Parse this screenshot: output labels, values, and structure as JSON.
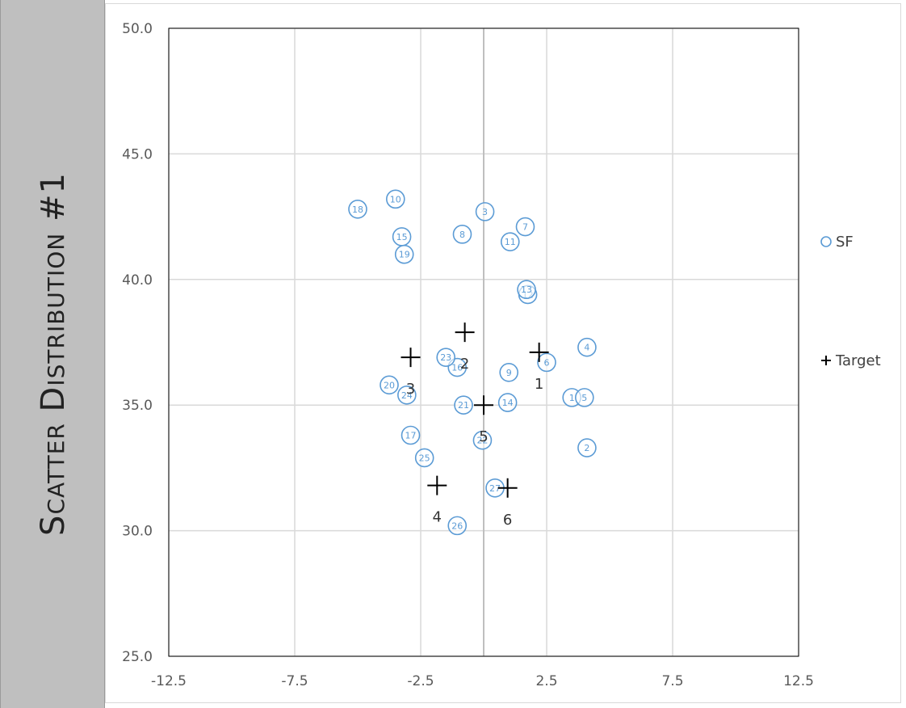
{
  "side_title": "Scatter Distribution #1",
  "chart_data": {
    "type": "scatter",
    "xlim": [
      -12.5,
      12.5
    ],
    "ylim": [
      25.0,
      50.0
    ],
    "x_ticks": [
      "-12.5",
      "-7.5",
      "-2.5",
      "2.5",
      "7.5",
      "12.5"
    ],
    "x_tick_values": [
      -12.5,
      -7.5,
      -2.5,
      2.5,
      7.5,
      12.5
    ],
    "y_ticks": [
      "25.0",
      "30.0",
      "35.0",
      "40.0",
      "45.0",
      "50.0"
    ],
    "y_tick_values": [
      25,
      30,
      35,
      40,
      45,
      50
    ],
    "grid": true,
    "legend_position": "right",
    "series": [
      {
        "name": "SF",
        "color": "#5b9bd5",
        "marker": "circle",
        "points": [
          {
            "label": "1",
            "x": 3.5,
            "y": 35.3
          },
          {
            "label": "2",
            "x": 4.1,
            "y": 33.3
          },
          {
            "label": "3",
            "x": 0.05,
            "y": 42.7
          },
          {
            "label": "4",
            "x": 4.1,
            "y": 37.3
          },
          {
            "label": "5",
            "x": 4.0,
            "y": 35.3
          },
          {
            "label": "6",
            "x": 2.5,
            "y": 36.7
          },
          {
            "label": "7",
            "x": 1.65,
            "y": 42.1
          },
          {
            "label": "8",
            "x": -0.85,
            "y": 41.8
          },
          {
            "label": "9",
            "x": 1.0,
            "y": 36.3
          },
          {
            "label": "10",
            "x": -3.5,
            "y": 43.2
          },
          {
            "label": "11",
            "x": 1.05,
            "y": 41.5
          },
          {
            "label": "12",
            "x": 1.75,
            "y": 39.4
          },
          {
            "label": "13",
            "x": 1.7,
            "y": 39.6
          },
          {
            "label": "14",
            "x": 0.95,
            "y": 35.1
          },
          {
            "label": "15",
            "x": -3.25,
            "y": 41.7
          },
          {
            "label": "16",
            "x": -1.05,
            "y": 36.5
          },
          {
            "label": "17",
            "x": -2.9,
            "y": 33.8
          },
          {
            "label": "18",
            "x": -5.0,
            "y": 42.8
          },
          {
            "label": "19",
            "x": -3.15,
            "y": 41.0
          },
          {
            "label": "20",
            "x": -3.75,
            "y": 35.8
          },
          {
            "label": "21",
            "x": -0.8,
            "y": 35.0
          },
          {
            "label": "22",
            "x": -0.05,
            "y": 33.6
          },
          {
            "label": "23",
            "x": -1.5,
            "y": 36.9
          },
          {
            "label": "24",
            "x": -3.05,
            "y": 35.4
          },
          {
            "label": "25",
            "x": -2.35,
            "y": 32.9
          },
          {
            "label": "26",
            "x": -1.05,
            "y": 30.2
          },
          {
            "label": "27",
            "x": 0.45,
            "y": 31.7
          }
        ]
      },
      {
        "name": "Target",
        "color": "#000000",
        "marker": "plus",
        "points": [
          {
            "label": "1",
            "x": 2.2,
            "y": 37.1
          },
          {
            "label": "2",
            "x": -0.75,
            "y": 37.9
          },
          {
            "label": "3",
            "x": -2.9,
            "y": 36.9
          },
          {
            "label": "4",
            "x": -1.85,
            "y": 31.8
          },
          {
            "label": "5",
            "x": 0.0,
            "y": 35.0
          },
          {
            "label": "6",
            "x": 0.95,
            "y": 31.7
          }
        ]
      }
    ]
  }
}
